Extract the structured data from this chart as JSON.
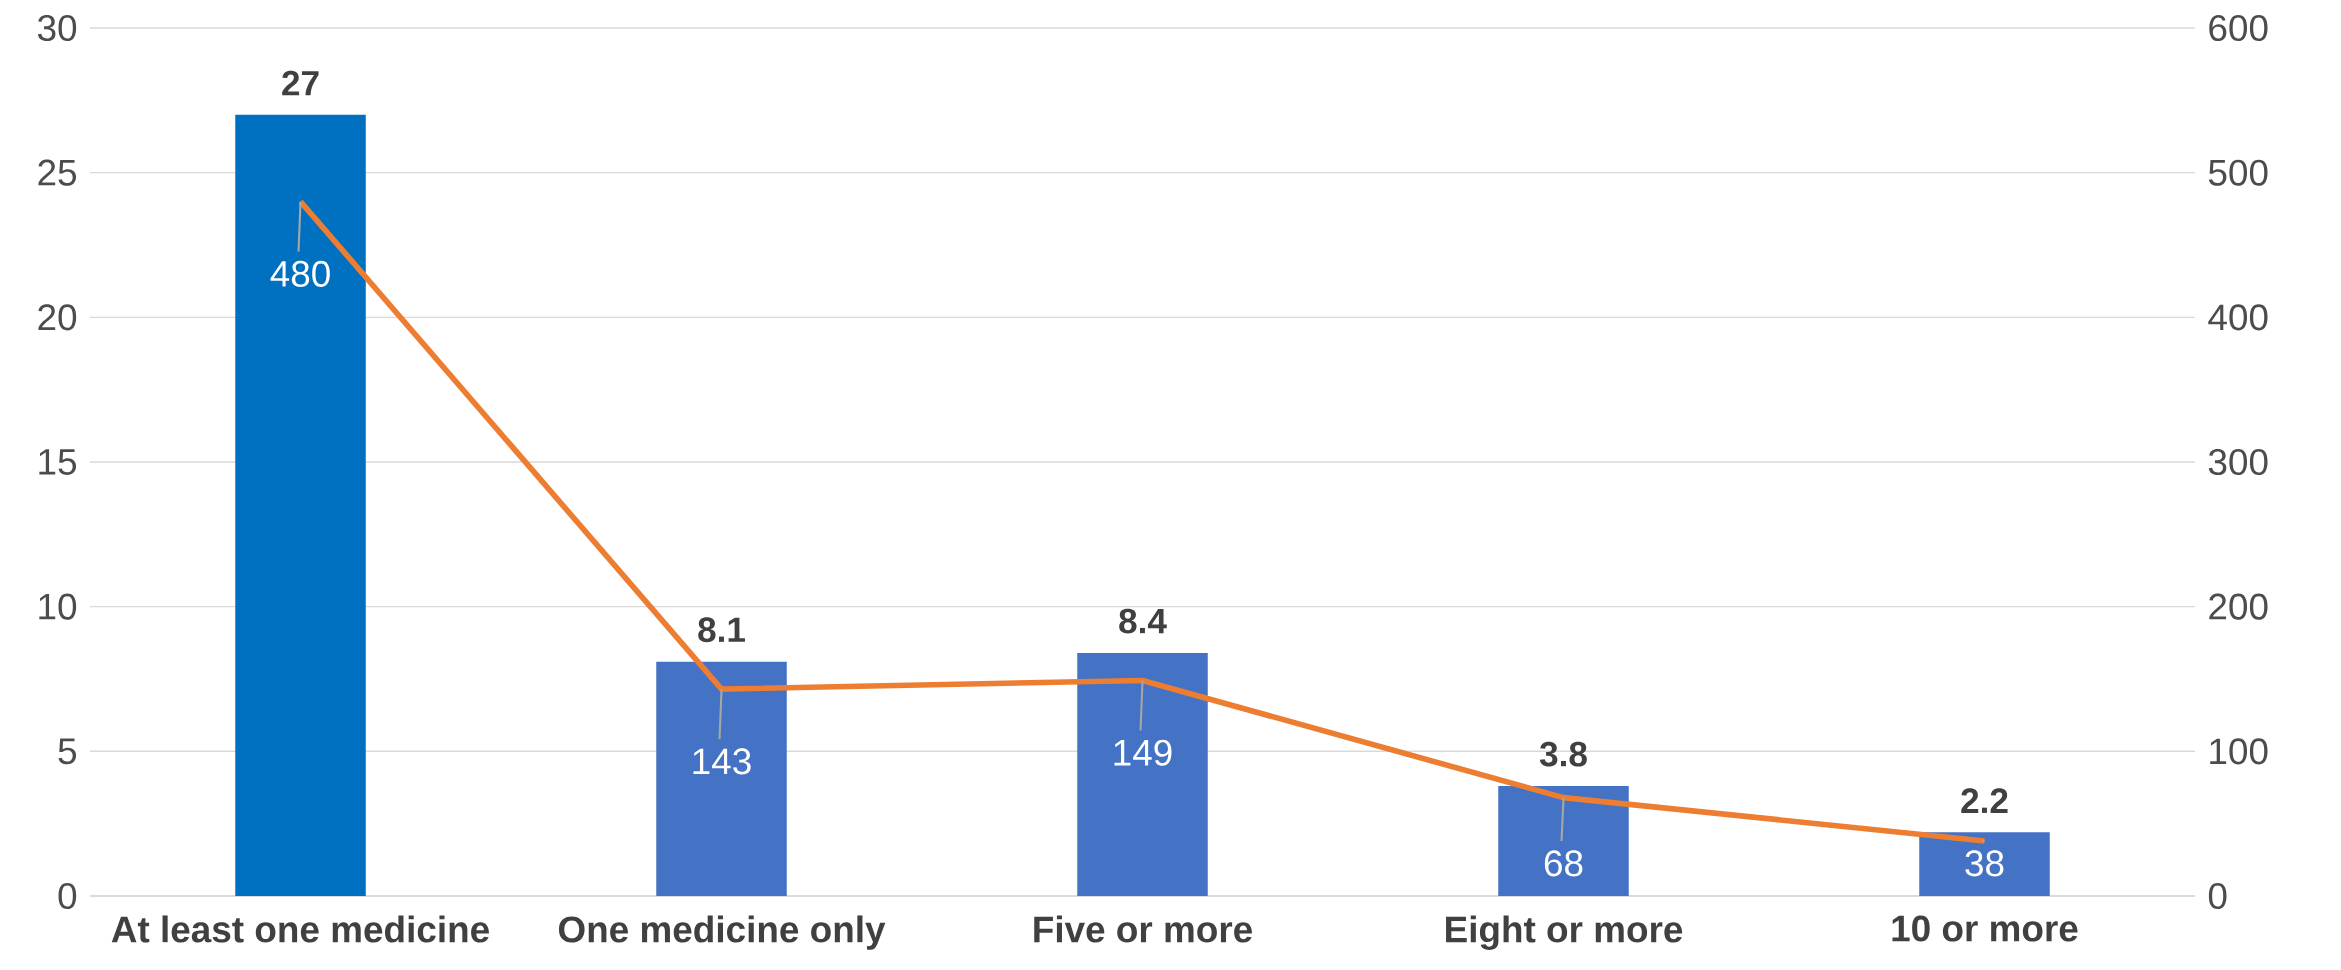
{
  "chart_data": {
    "type": "bar",
    "categories": [
      "At least one medicine",
      "One medicine only",
      "Five or more",
      "Eight or more",
      "10 or more"
    ],
    "series": [
      {
        "colors": [
          "#0070c0",
          "#4472c4",
          "#4472c4",
          "#4472c4",
          "#4472c4"
        ],
        "values": [
          27,
          8.1,
          8.4,
          3.8,
          2.2
        ]
      },
      {
        "type": "line",
        "axis": "y2",
        "color": "#ed7d31",
        "values": [
          480,
          143,
          149,
          68,
          38
        ]
      }
    ],
    "ylim": [
      0,
      30
    ],
    "yticks": [
      0,
      5,
      10,
      15,
      20,
      25,
      30
    ],
    "y2lim": [
      0,
      600
    ],
    "y2ticks": [
      0,
      100,
      200,
      300,
      400,
      500,
      600
    ],
    "grid": "y",
    "data_labels": true
  }
}
